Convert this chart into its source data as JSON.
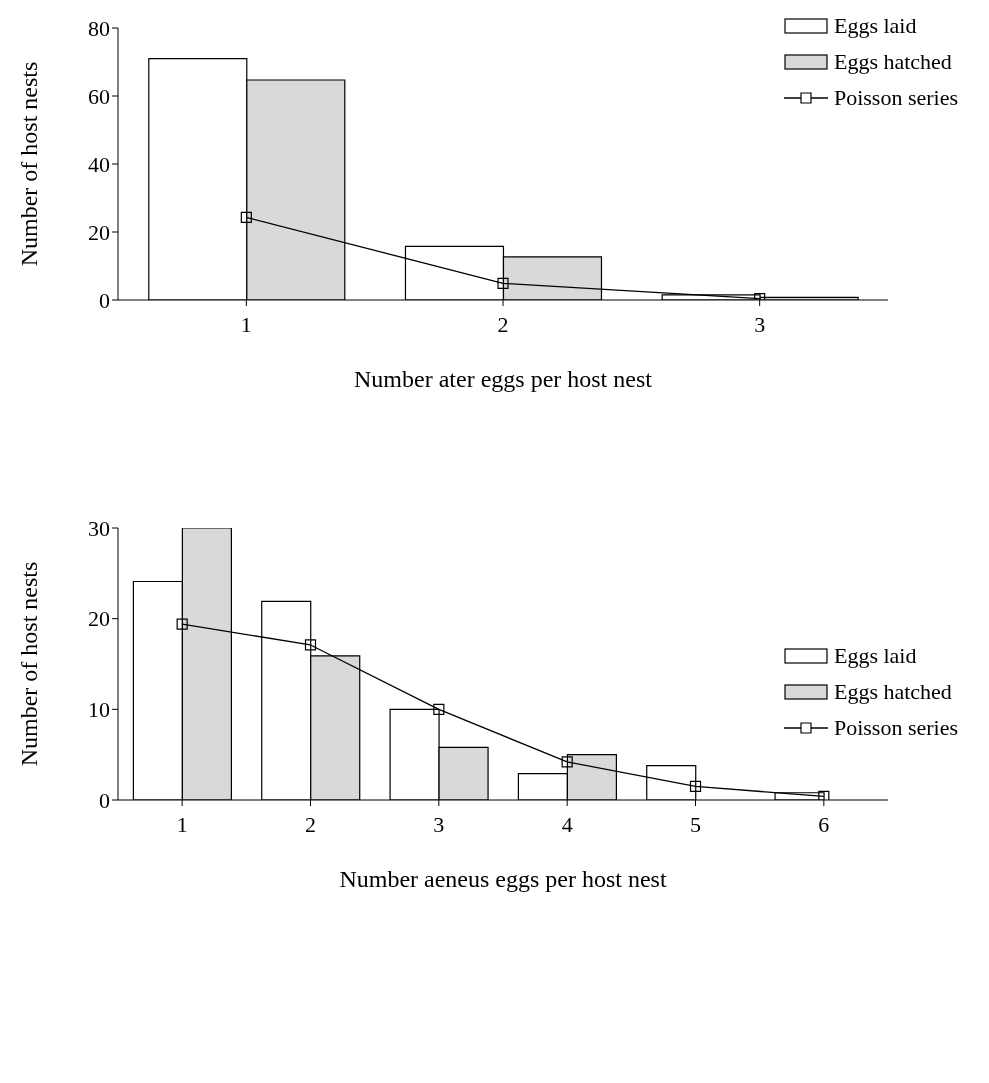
{
  "chart_data": [
    {
      "type": "bar",
      "categories": [
        "1",
        "2",
        "3"
      ],
      "xlabel": "Number ater eggs per host nest",
      "ylabel": "Number of host nests",
      "ylim": [
        0,
        80
      ],
      "yticks": [
        0,
        20,
        40,
        60,
        80
      ],
      "legend": "top right",
      "marker": "square",
      "series": [
        {
          "name": "Eggs laid",
          "color": "#ffffff",
          "values": [
            71,
            15.8,
            1.5
          ]
        },
        {
          "name": "Eggs hatched",
          "color": "#d9d9d9",
          "values": [
            64.7,
            12.7,
            0.8
          ]
        },
        {
          "name": "Poisson series",
          "type": "line",
          "color": "#000000",
          "values": [
            24.3,
            4.9,
            0.4
          ]
        }
      ]
    },
    {
      "type": "bar",
      "categories": [
        "1",
        "2",
        "3",
        "4",
        "5",
        "6"
      ],
      "xlabel": "Number aeneus eggs per host nest",
      "ylabel": "Number of host nests",
      "ylim": [
        0,
        30
      ],
      "yticks": [
        0,
        10,
        20,
        30
      ],
      "legend": "right",
      "marker": "square",
      "series": [
        {
          "name": "Eggs laid",
          "color": "#ffffff",
          "values": [
            24.1,
            21.9,
            10,
            2.9,
            3.8,
            0.8
          ]
        },
        {
          "name": "Eggs hatched",
          "color": "#d9d9d9",
          "values": [
            30,
            15.9,
            5.8,
            5.0,
            0,
            0
          ]
        },
        {
          "name": "Poisson series",
          "type": "line",
          "color": "#000000",
          "values": [
            19.4,
            17.1,
            10,
            4.2,
            1.5,
            0.4
          ]
        }
      ]
    }
  ]
}
